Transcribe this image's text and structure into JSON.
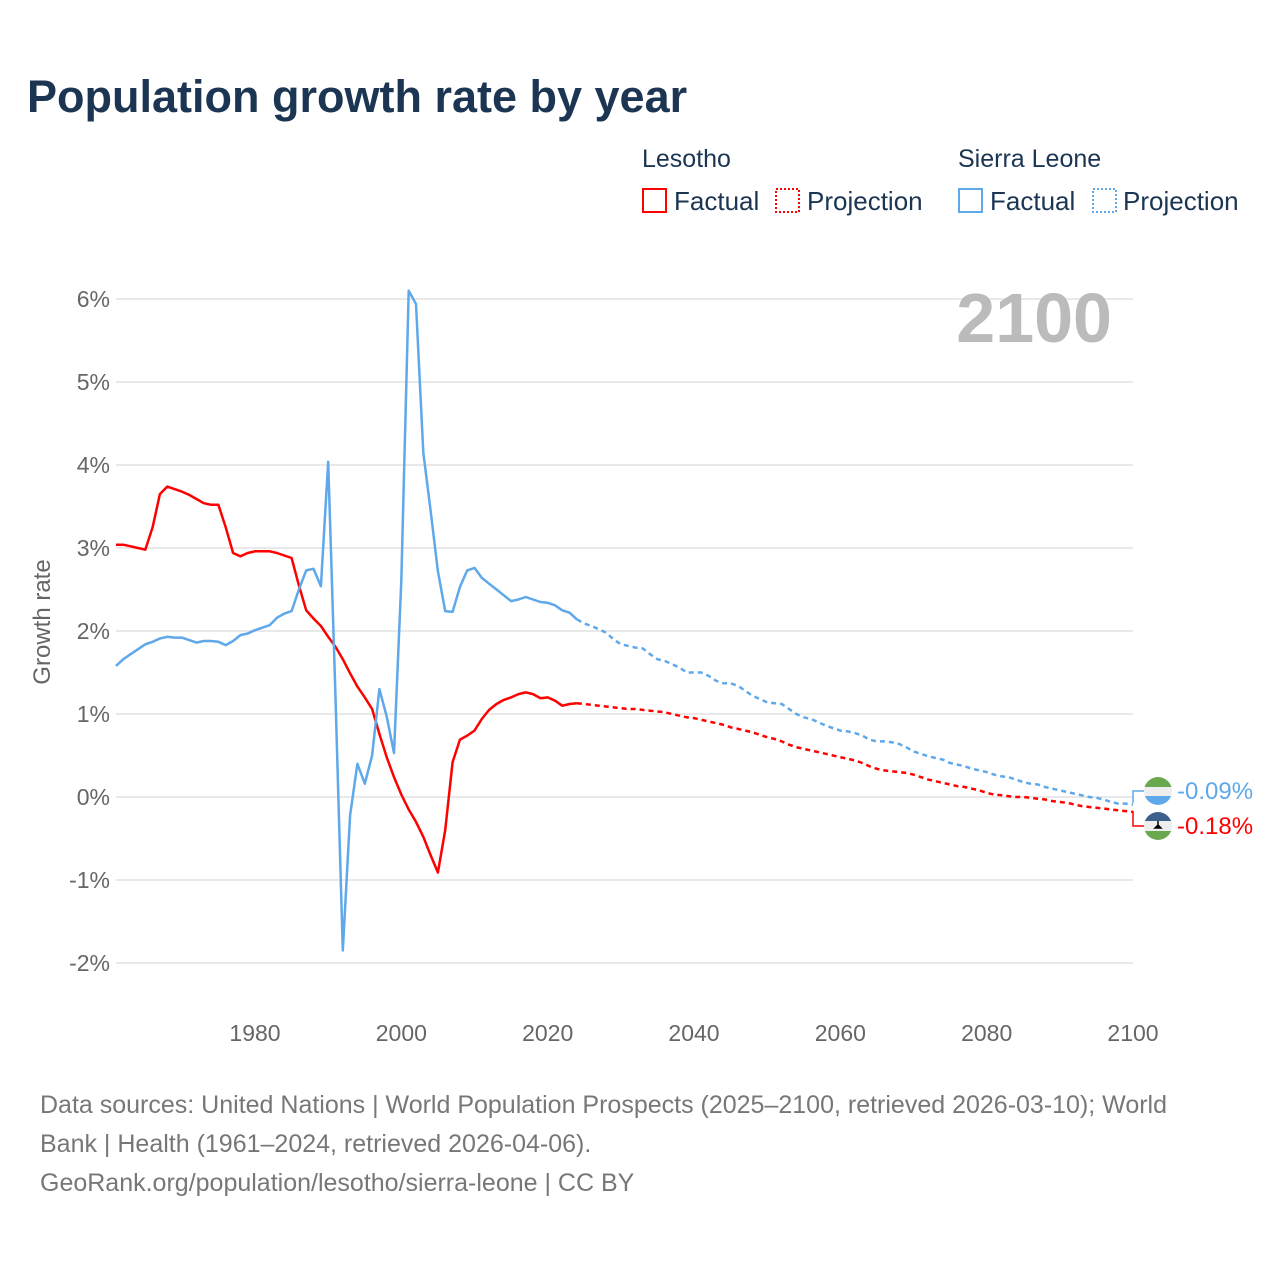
{
  "title": "Population growth rate by year",
  "legend": {
    "groups": [
      {
        "name": "Lesotho",
        "factual_label": "Factual",
        "projection_label": "Projection",
        "color": "#ff0000"
      },
      {
        "name": "Sierra Leone",
        "factual_label": "Factual",
        "projection_label": "Projection",
        "color": "#5fa8ea"
      }
    ]
  },
  "year_label": "2100",
  "footer": {
    "line1": "Data sources: United Nations | World Population Prospects (2025–2100, retrieved 2026-03-10); World",
    "line2": "Bank | Health (1961–2024, retrieved 2026-04-06).",
    "line3": "GeoRank.org/population/lesotho/sierra-leone | CC BY"
  },
  "chart_data": {
    "type": "line",
    "title": "Population growth rate by year",
    "xlabel": "",
    "ylabel": "Growth rate",
    "xlim": [
      1961,
      2100
    ],
    "ylim": [
      -2.4,
      6.2
    ],
    "x_ticks": [
      1980,
      2000,
      2020,
      2040,
      2060,
      2080,
      2100
    ],
    "y_ticks": [
      -2,
      -1,
      0,
      1,
      2,
      3,
      4,
      5,
      6
    ],
    "y_tick_labels": [
      "-2%",
      "-1%",
      "0%",
      "1%",
      "2%",
      "3%",
      "4%",
      "5%",
      "6%"
    ],
    "grid": true,
    "series": [
      {
        "name": "Lesotho",
        "color": "#ff0000",
        "factual_start": 1961,
        "factual": [
          3.04,
          3.04,
          3.02,
          3.0,
          2.98,
          3.25,
          3.65,
          3.74,
          3.71,
          3.68,
          3.64,
          3.59,
          3.54,
          3.52,
          3.52,
          3.25,
          2.94,
          2.9,
          2.94,
          2.96,
          2.96,
          2.96,
          2.94,
          2.91,
          2.88,
          2.55,
          2.25,
          2.15,
          2.06,
          1.93,
          1.81,
          1.66,
          1.49,
          1.33,
          1.2,
          1.06,
          0.76,
          0.48,
          0.24,
          0.03,
          -0.15,
          -0.3,
          -0.48,
          -0.7,
          -0.91,
          -0.4,
          0.42,
          0.69,
          0.74,
          0.8,
          0.94,
          1.05,
          1.12,
          1.17,
          1.2,
          1.24,
          1.26,
          1.24,
          1.19,
          1.2,
          1.16,
          1.1,
          1.12,
          1.13
        ],
        "projection_start": 2025,
        "projection": [
          1.12,
          1.11,
          1.1,
          1.09,
          1.08,
          1.07,
          1.06,
          1.06,
          1.05,
          1.04,
          1.03,
          1.02,
          1.0,
          0.98,
          0.96,
          0.95,
          0.93,
          0.91,
          0.89,
          0.87,
          0.84,
          0.82,
          0.8,
          0.78,
          0.75,
          0.72,
          0.7,
          0.67,
          0.63,
          0.6,
          0.58,
          0.56,
          0.54,
          0.52,
          0.5,
          0.48,
          0.46,
          0.44,
          0.41,
          0.37,
          0.34,
          0.32,
          0.31,
          0.3,
          0.29,
          0.27,
          0.24,
          0.21,
          0.19,
          0.17,
          0.15,
          0.13,
          0.12,
          0.1,
          0.08,
          0.05,
          0.03,
          0.02,
          0.01,
          0.0,
          0.0,
          -0.01,
          -0.02,
          -0.03,
          -0.05,
          -0.06,
          -0.07,
          -0.09,
          -0.11,
          -0.12,
          -0.13,
          -0.14,
          -0.15,
          -0.16,
          -0.17,
          -0.18
        ],
        "end_label": "-0.18%"
      },
      {
        "name": "Sierra Leone",
        "color": "#5fa8ea",
        "factual_start": 1961,
        "factual": [
          1.58,
          1.66,
          1.72,
          1.78,
          1.84,
          1.87,
          1.91,
          1.93,
          1.92,
          1.92,
          1.89,
          1.86,
          1.88,
          1.88,
          1.87,
          1.83,
          1.88,
          1.95,
          1.97,
          2.01,
          2.04,
          2.07,
          2.16,
          2.21,
          2.24,
          2.5,
          2.73,
          2.75,
          2.54,
          4.04,
          1.2,
          -1.85,
          -0.22,
          0.4,
          0.16,
          0.5,
          1.3,
          0.97,
          0.53,
          2.6,
          6.1,
          5.94,
          4.15,
          3.45,
          2.72,
          2.24,
          2.23,
          2.53,
          2.73,
          2.76,
          2.64,
          2.57,
          2.5,
          2.43,
          2.36,
          2.38,
          2.41,
          2.38,
          2.35,
          2.34,
          2.31,
          2.25,
          2.22,
          2.14
        ],
        "projection_start": 2025,
        "projection": [
          2.09,
          2.06,
          2.02,
          1.98,
          1.9,
          1.84,
          1.82,
          1.8,
          1.79,
          1.72,
          1.66,
          1.64,
          1.6,
          1.56,
          1.5,
          1.5,
          1.5,
          1.46,
          1.4,
          1.37,
          1.37,
          1.34,
          1.28,
          1.22,
          1.18,
          1.14,
          1.13,
          1.12,
          1.06,
          1.0,
          0.96,
          0.94,
          0.9,
          0.86,
          0.83,
          0.8,
          0.79,
          0.77,
          0.74,
          0.69,
          0.67,
          0.67,
          0.66,
          0.64,
          0.6,
          0.55,
          0.52,
          0.49,
          0.47,
          0.45,
          0.41,
          0.39,
          0.37,
          0.34,
          0.32,
          0.3,
          0.27,
          0.25,
          0.24,
          0.21,
          0.18,
          0.16,
          0.15,
          0.12,
          0.1,
          0.08,
          0.06,
          0.04,
          0.02,
          0.0,
          -0.01,
          -0.03,
          -0.06,
          -0.08,
          -0.08,
          -0.09
        ],
        "end_label": "-0.09%"
      }
    ]
  }
}
